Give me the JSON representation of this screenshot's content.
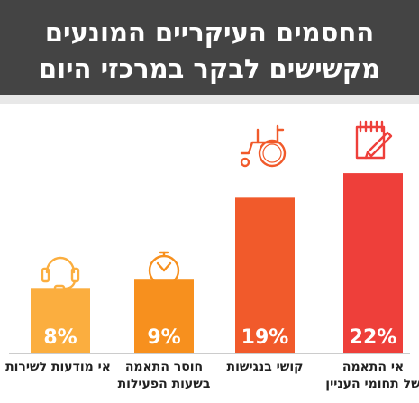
{
  "header": {
    "title_line1": "החסמים העיקריים המונעים",
    "title_line2": "מקשישים לבקר במרכזי היום"
  },
  "colors": {
    "header_bg": "#444444",
    "bars": [
      "#ee3f3a",
      "#f15a2b",
      "#f7901e",
      "#fbae3f"
    ]
  },
  "icons": [
    "notepad-pencil-icon",
    "wheelchair-icon",
    "clock-icon",
    "headset-icon"
  ],
  "chart_data": {
    "type": "bar",
    "ylim": [
      0,
      23
    ],
    "categories": [
      {
        "line1": "אי התאמה",
        "line2": "של תחומי העניין"
      },
      {
        "line1": "קושי בנגישות",
        "line2": ""
      },
      {
        "line1": "חוסר התאמה",
        "line2": "בשעות הפעילות"
      },
      {
        "line1": "אי מודעות לשירות",
        "line2": ""
      }
    ],
    "values": [
      22,
      19,
      9,
      8
    ],
    "value_labels": [
      "22%",
      "19%",
      "9%",
      "8%"
    ]
  }
}
